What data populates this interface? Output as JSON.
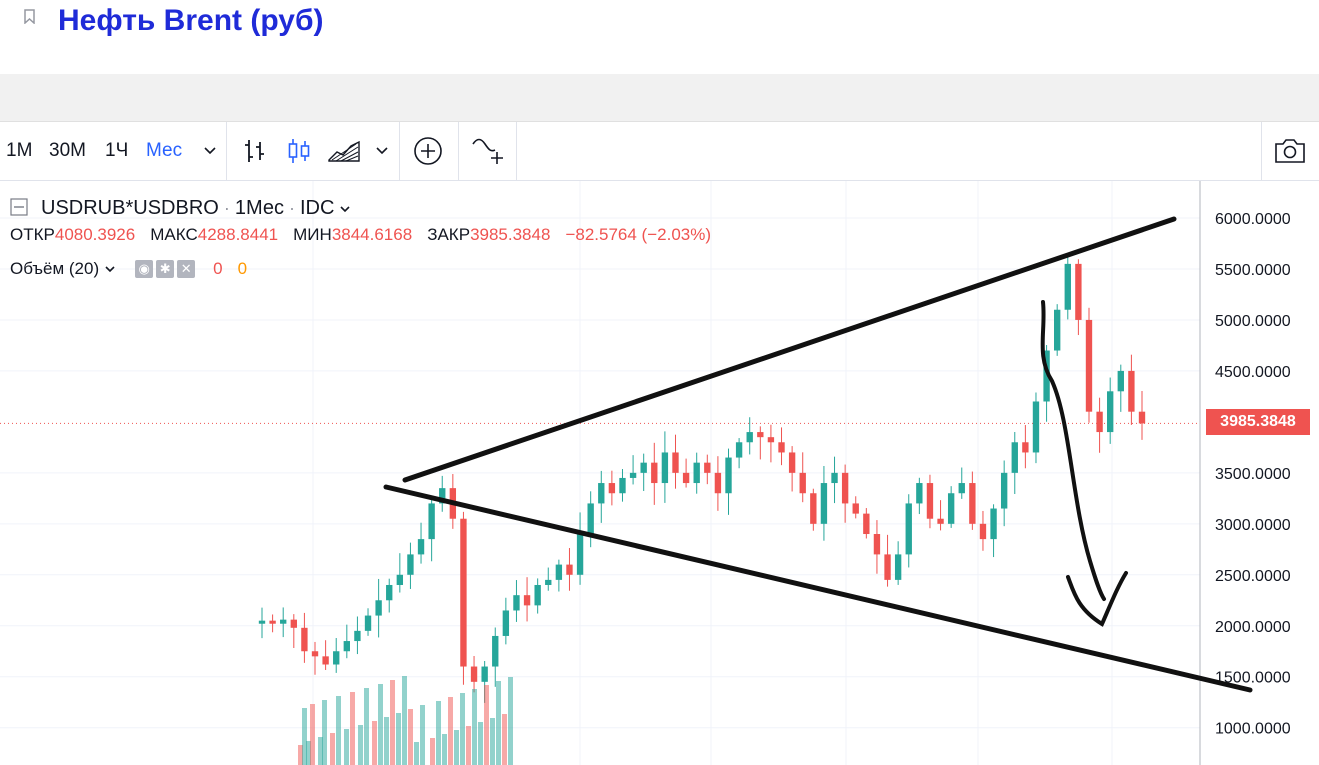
{
  "page": {
    "title": "Нефть Brent (руб)"
  },
  "toolbar": {
    "intervals": [
      "1М",
      "30М",
      "1Ч",
      "Мес"
    ],
    "active_interval": "Мес"
  },
  "legend": {
    "symbol": "USDRUB*USDBRO",
    "interval": "1Мес",
    "source": "IDC",
    "open_label": "ОТКР",
    "open": "4080.3926",
    "high_label": "МАКС",
    "high": "4288.8441",
    "low_label": "МИН",
    "low": "3844.6168",
    "close_label": "ЗАКР",
    "close": "3985.3848",
    "change": "−82.5764 (−2.03%)",
    "volume_label": "Объём (20)",
    "volume_val1": "0",
    "volume_val2": "0"
  },
  "price_tag": "3985.3848",
  "colors": {
    "up": "#26a69a",
    "down": "#ef5350",
    "accent": "#2962ff",
    "title": "#1f2bd8"
  },
  "chart_data": {
    "type": "candlestick",
    "y_axis_labels": [
      "6000.0000",
      "5500.0000",
      "5000.0000",
      "4500.0000",
      "3500.0000",
      "3000.0000",
      "2500.0000",
      "2000.0000",
      "1500.0000",
      "1000.0000"
    ],
    "ylim": [
      850,
      6350
    ],
    "last_close": 3985.3848,
    "close_series": [
      2050,
      2020,
      2060,
      1980,
      1750,
      1700,
      1620,
      1750,
      1850,
      1950,
      2100,
      2250,
      2400,
      2500,
      2700,
      2850,
      3200,
      3350,
      3050,
      1600,
      1450,
      1600,
      1900,
      2150,
      2300,
      2200,
      2400,
      2450,
      2600,
      2500,
      2900,
      3200,
      3400,
      3300,
      3450,
      3500,
      3600,
      3400,
      3700,
      3500,
      3400,
      3600,
      3500,
      3300,
      3650,
      3800,
      3900,
      3850,
      3800,
      3700,
      3500,
      3300,
      3000,
      3400,
      3500,
      3200,
      3100,
      2900,
      2700,
      2450,
      2700,
      3200,
      3400,
      3050,
      3000,
      3300,
      3400,
      3000,
      2850,
      3150,
      3500,
      3800,
      3700,
      4200,
      4700,
      5100,
      5550,
      5000,
      4100,
      3900,
      4300,
      4500,
      4100,
      3985
    ],
    "volume_note": "volume bars shown only for early period"
  }
}
